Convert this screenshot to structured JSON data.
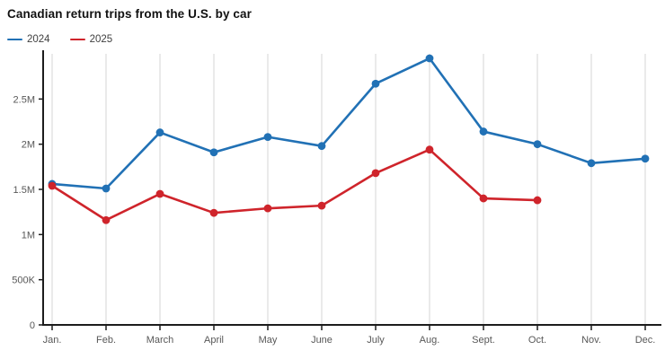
{
  "title": "Canadian return trips from the U.S. by car",
  "chart_data": {
    "type": "line",
    "title": "Canadian return trips from the U.S. by car",
    "categories": [
      "Jan.",
      "Feb.",
      "March",
      "April",
      "May",
      "June",
      "July",
      "Aug.",
      "Sept.",
      "Oct.",
      "Nov.",
      "Dec."
    ],
    "series": [
      {
        "name": "2024",
        "color": "#2171b5",
        "values": [
          1560000,
          1510000,
          2130000,
          1910000,
          2080000,
          1980000,
          2670000,
          2950000,
          2140000,
          2000000,
          1790000,
          1840000
        ]
      },
      {
        "name": "2025",
        "color": "#cf242b",
        "values": [
          1540000,
          1160000,
          1450000,
          1240000,
          1290000,
          1320000,
          1680000,
          1940000,
          1400000,
          1380000
        ]
      }
    ],
    "xlabel": "",
    "ylabel": "",
    "ylim": [
      0,
      3000000
    ],
    "yticks": [
      {
        "value": 0,
        "label": "0"
      },
      {
        "value": 500000,
        "label": "500K"
      },
      {
        "value": 1000000,
        "label": "1M"
      },
      {
        "value": 1500000,
        "label": "1.5M"
      },
      {
        "value": 2000000,
        "label": "2M"
      },
      {
        "value": 2500000,
        "label": "2.5M"
      }
    ],
    "grid": "vertical",
    "legend_position": "top-left"
  },
  "colors": {
    "axis": "#1c1c1c",
    "grid": "#d4d4d4",
    "tick_label": "#585858",
    "title": "#111111",
    "background": "#ffffff"
  }
}
